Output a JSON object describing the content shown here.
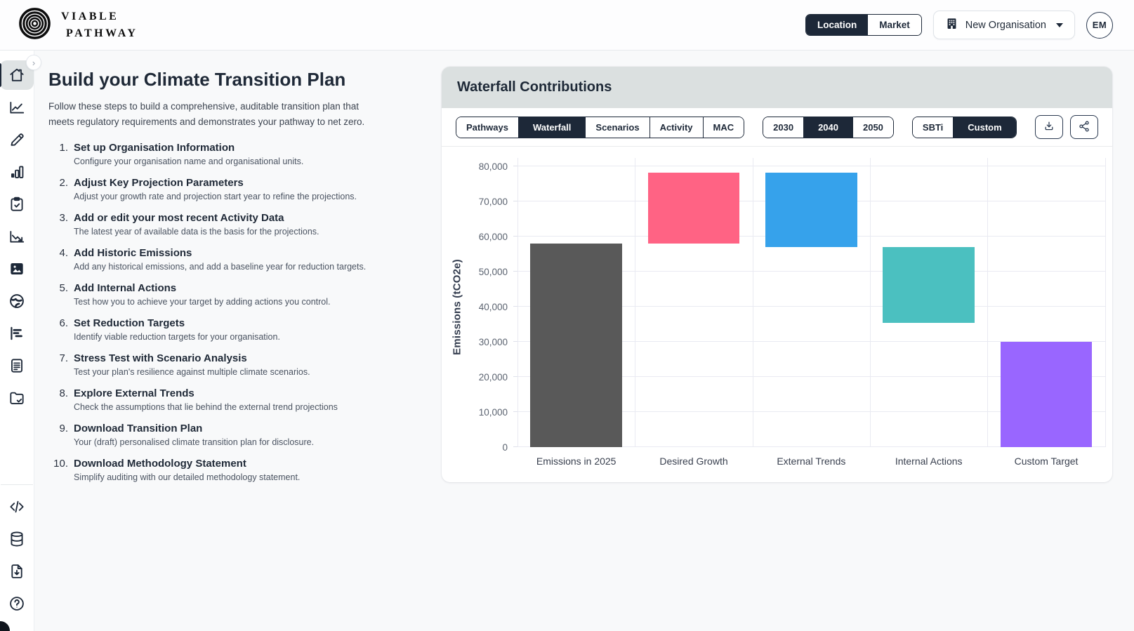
{
  "brand": {
    "line1": "VIABLE",
    "line2": "PATHWAY",
    "logo_icon": "concentric-circles-logo"
  },
  "header": {
    "toggle": {
      "options": [
        "Location",
        "Market"
      ],
      "active": "Location"
    },
    "org_selector": {
      "label": "New Organisation",
      "icon": "building-icon",
      "caret": "caret-down-icon"
    },
    "avatar_initials": "EM"
  },
  "sidebar": {
    "collapse_icon": "chevron-right-icon",
    "items": [
      {
        "icon": "home-icon",
        "active": true
      },
      {
        "icon": "line-chart-icon",
        "active": false
      },
      {
        "icon": "pencil-icon",
        "active": false
      },
      {
        "icon": "bar-chart-icon",
        "active": false
      },
      {
        "icon": "clipboard-check-icon",
        "active": false
      },
      {
        "icon": "chart-down-icon",
        "active": false
      },
      {
        "icon": "image-icon",
        "active": false
      },
      {
        "icon": "globe-icon",
        "active": false
      },
      {
        "icon": "gantt-icon",
        "active": false
      },
      {
        "icon": "document-icon",
        "active": false
      },
      {
        "icon": "folder-check-icon",
        "active": false
      }
    ],
    "bottom_items": [
      {
        "icon": "code-icon"
      },
      {
        "icon": "database-icon"
      },
      {
        "icon": "file-download-icon"
      },
      {
        "icon": "help-icon"
      }
    ]
  },
  "main": {
    "title": "Build your Climate Transition Plan",
    "intro": "Follow these steps to build a comprehensive, auditable transition plan that meets regulatory requirements and demonstrates your pathway to net zero.",
    "steps": [
      {
        "num": "1.",
        "title": "Set up Organisation Information",
        "desc": "Configure your organisation name and organisational units."
      },
      {
        "num": "2.",
        "title": "Adjust Key Projection Parameters",
        "desc": "Adjust your growth rate and projection start year to refine the projections."
      },
      {
        "num": "3.",
        "title": "Add or edit your most recent Activity Data",
        "desc": "The latest year of available data is the basis for the projections."
      },
      {
        "num": "4.",
        "title": "Add Historic Emissions",
        "desc": "Add any historical emissions, and add a baseline year for reduction targets."
      },
      {
        "num": "5.",
        "title": "Add Internal Actions",
        "desc": "Test how you to achieve your target by adding actions you control."
      },
      {
        "num": "6.",
        "title": "Set Reduction Targets",
        "desc": "Identify viable reduction targets for your organisation."
      },
      {
        "num": "7.",
        "title": "Stress Test with Scenario Analysis",
        "desc": "Test your plan's resilience against multiple climate scenarios."
      },
      {
        "num": "8.",
        "title": "Explore External Trends",
        "desc": "Check the assumptions that lie behind the external trend projections"
      },
      {
        "num": "9.",
        "title": "Download Transition Plan",
        "desc": "Your (draft) personalised climate transition plan for disclosure."
      },
      {
        "num": "10.",
        "title": "Download Methodology Statement",
        "desc": "Simplify auditing with our detailed methodology statement."
      }
    ]
  },
  "panel": {
    "title": "Waterfall Contributions",
    "view_tabs": [
      "Pathways",
      "Waterfall",
      "Scenarios",
      "Activity",
      "MAC"
    ],
    "active_view": "Waterfall",
    "year_tabs": [
      "2030",
      "2040",
      "2050"
    ],
    "active_year": "2040",
    "target_tabs": [
      "SBTi",
      "Custom"
    ],
    "active_target": "Custom",
    "action_icons": [
      "download-icon",
      "share-icon"
    ],
    "accent_color": "#1d2838",
    "header_bg": "#dbe0e0"
  },
  "chart_data": {
    "type": "bar",
    "variant": "waterfall",
    "title": "Waterfall Contributions",
    "xlabel": "",
    "ylabel": "Emissions (tCO2e)",
    "ylim": [
      0,
      80000
    ],
    "ytick_step": 10000,
    "yticks": [
      "0",
      "10,000",
      "20,000",
      "30,000",
      "40,000",
      "50,000",
      "60,000",
      "70,000",
      "80,000"
    ],
    "grid": true,
    "legend": "none",
    "categories": [
      "Emissions in 2025",
      "Desired Growth",
      "External Trends",
      "Internal Actions",
      "Custom Target"
    ],
    "bars": [
      {
        "label": "Emissions in 2025",
        "from": 0,
        "to": 58000,
        "delta": 58000,
        "color": "#595959"
      },
      {
        "label": "Desired Growth",
        "from": 58000,
        "to": 78200,
        "delta": 20200,
        "color": "#FF6384"
      },
      {
        "label": "External Trends",
        "from": 57000,
        "to": 78200,
        "delta": -21200,
        "color": "#36A2EB"
      },
      {
        "label": "Internal Actions",
        "from": 35400,
        "to": 57000,
        "delta": -21600,
        "color": "#4BC0C0"
      },
      {
        "label": "Custom Target",
        "from": 0,
        "to": 30100,
        "delta": 30100,
        "color": "#9966FF"
      }
    ]
  }
}
